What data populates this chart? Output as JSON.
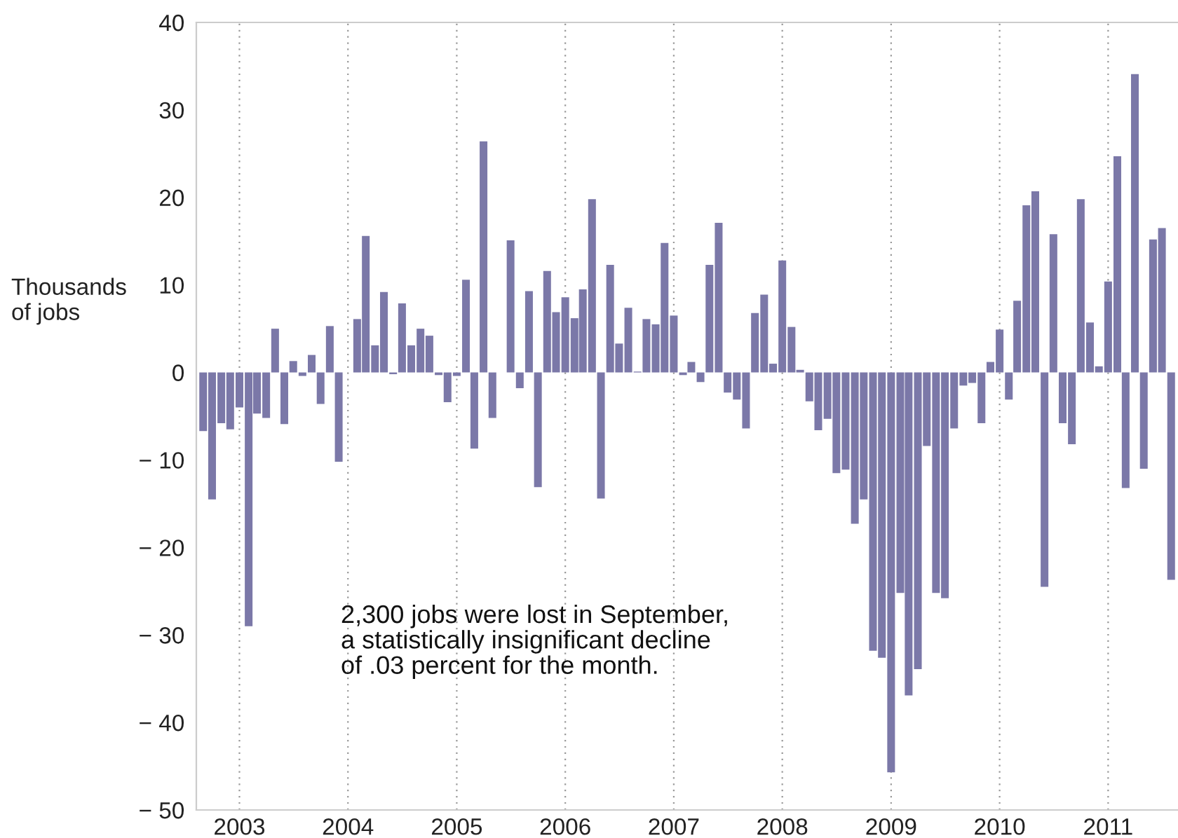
{
  "chart_data": {
    "type": "bar",
    "ylabel": "Thousands\nof jobs",
    "annotations": [
      "2,300 jobs were lost in September,\na statistically insignificant decline\nof .03 percent for the month."
    ],
    "x": [
      "2002-09",
      "2002-10",
      "2002-11",
      "2002-12",
      "2003-01",
      "2003-02",
      "2003-03",
      "2003-04",
      "2003-05",
      "2003-06",
      "2003-07",
      "2003-08",
      "2003-09",
      "2003-10",
      "2003-11",
      "2003-12",
      "2004-01",
      "2004-02",
      "2004-03",
      "2004-04",
      "2004-05",
      "2004-06",
      "2004-07",
      "2004-08",
      "2004-09",
      "2004-10",
      "2004-11",
      "2004-12",
      "2005-01",
      "2005-02",
      "2005-03",
      "2005-04",
      "2005-05",
      "2005-06",
      "2005-07",
      "2005-08",
      "2005-09",
      "2005-10",
      "2005-11",
      "2005-12",
      "2006-01",
      "2006-02",
      "2006-03",
      "2006-04",
      "2006-05",
      "2006-06",
      "2006-07",
      "2006-08",
      "2006-09",
      "2006-10",
      "2006-11",
      "2006-12",
      "2007-01",
      "2007-02",
      "2007-03",
      "2007-04",
      "2007-05",
      "2007-06",
      "2007-07",
      "2007-08",
      "2007-09",
      "2007-10",
      "2007-11",
      "2007-12",
      "2008-01",
      "2008-02",
      "2008-03",
      "2008-04",
      "2008-05",
      "2008-06",
      "2008-07",
      "2008-08",
      "2008-09",
      "2008-10",
      "2008-11",
      "2008-12",
      "2009-01",
      "2009-02",
      "2009-03",
      "2009-04",
      "2009-05",
      "2009-06",
      "2009-07",
      "2009-08",
      "2009-09",
      "2009-10",
      "2009-11",
      "2009-12",
      "2010-01",
      "2010-02",
      "2010-03",
      "2010-04",
      "2010-05",
      "2010-06",
      "2010-07",
      "2010-08",
      "2010-09",
      "2010-10",
      "2010-11",
      "2010-12",
      "2011-01",
      "2011-02",
      "2011-03",
      "2011-04",
      "2011-05",
      "2011-06",
      "2011-07",
      "2011-08"
    ],
    "values": [
      -6.7,
      -14.5,
      -5.8,
      -6.5,
      -4.0,
      -29.0,
      -4.7,
      -5.2,
      5.0,
      -5.9,
      1.3,
      -0.4,
      2.0,
      -3.6,
      5.3,
      -10.2,
      0,
      6.1,
      15.6,
      3.1,
      9.2,
      -0.2,
      7.9,
      3.1,
      5.0,
      4.2,
      -0.3,
      -3.4,
      -0.4,
      10.6,
      -8.7,
      26.4,
      -5.2,
      0,
      15.1,
      -1.8,
      9.3,
      -13.1,
      11.6,
      6.9,
      8.6,
      6.2,
      9.5,
      19.8,
      -14.4,
      12.3,
      3.3,
      7.4,
      0.1,
      6.1,
      5.5,
      14.8,
      6.5,
      -0.3,
      1.2,
      -1.1,
      12.3,
      17.1,
      -2.3,
      -3.1,
      -6.4,
      6.8,
      8.9,
      1.0,
      12.8,
      5.2,
      0.3,
      -3.3,
      -6.6,
      -5.3,
      -11.5,
      -11.1,
      -17.3,
      -14.5,
      -31.8,
      -32.6,
      -45.7,
      -25.2,
      -36.9,
      -33.9,
      -8.4,
      -25.2,
      -25.8,
      -6.4,
      -1.5,
      -1.2,
      -5.8,
      1.2,
      4.9,
      -3.1,
      8.2,
      19.1,
      20.7,
      -24.5,
      15.8,
      -5.8,
      -8.2,
      19.8,
      5.7,
      0.7,
      10.4,
      24.7,
      -13.2,
      34.1,
      -11.0,
      15.2,
      16.5,
      -23.7
    ],
    "color": "#7b78a8",
    "xlim": [
      "2002-08-09",
      "2011-08-24"
    ],
    "xticks": [
      {
        "value": "2003",
        "label": "2003"
      },
      {
        "value": "2004",
        "label": "2004"
      },
      {
        "value": "2005",
        "label": "2005"
      },
      {
        "value": "2006",
        "label": "2006"
      },
      {
        "value": "2007",
        "label": "2007"
      },
      {
        "value": "2008",
        "label": "2008"
      },
      {
        "value": "2009",
        "label": "2009"
      },
      {
        "value": "2010",
        "label": "2010"
      },
      {
        "value": "2011",
        "label": "2011"
      }
    ],
    "ylim": [
      -50,
      40
    ],
    "yticks": [
      {
        "value": -50,
        "label": "− 50"
      },
      {
        "value": -40,
        "label": "− 40"
      },
      {
        "value": -30,
        "label": "− 30"
      },
      {
        "value": -20,
        "label": "− 20"
      },
      {
        "value": -10,
        "label": "− 10"
      },
      0,
      10,
      20,
      30,
      40
    ],
    "grid": "x"
  }
}
